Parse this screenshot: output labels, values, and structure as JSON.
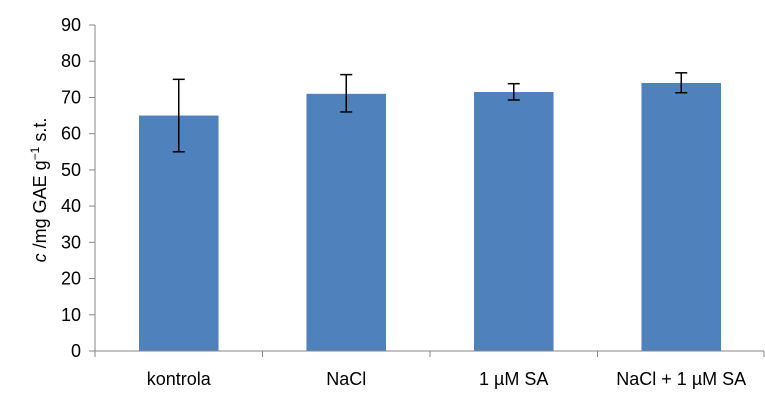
{
  "chart_data": {
    "type": "bar",
    "categories": [
      "kontrola",
      "NaCl",
      "1 µM SA",
      "NaCl + 1 µM SA"
    ],
    "values": [
      65,
      71,
      71.5,
      74
    ],
    "error_bars": [
      {
        "low": 55,
        "high": 75
      },
      {
        "low": 66,
        "high": 76.3
      },
      {
        "low": 69.3,
        "high": 73.8
      },
      {
        "low": 71.3,
        "high": 76.8
      }
    ],
    "ylim": [
      0,
      90
    ],
    "yticks": [
      0,
      10,
      20,
      30,
      40,
      50,
      60,
      70,
      80,
      90
    ],
    "ylabel": {
      "variable": "c",
      "unit": " /mg GAE g",
      "exponent": "−1",
      "suffix": " s.t."
    },
    "xlabel": "",
    "title": "",
    "grid": false,
    "legend": "none",
    "bar_color": "#4f81bd"
  }
}
